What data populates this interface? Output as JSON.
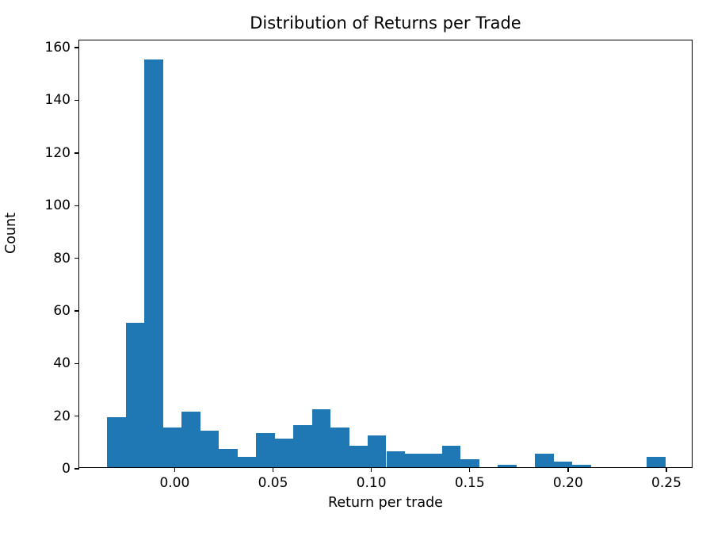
{
  "figure": {
    "background": "#ffffff"
  },
  "chart_data": {
    "type": "histogram",
    "title": "Distribution of Returns per Trade",
    "xlabel": "Return per trade",
    "ylabel": "Count",
    "bar_color": "#1f77b4",
    "grid": false,
    "legend": false,
    "bins": {
      "start": -0.0343,
      "width": 0.00946,
      "count": 30
    },
    "counts": [
      19,
      55,
      155,
      15,
      21,
      14,
      7,
      4,
      13,
      11,
      16,
      22,
      15,
      8,
      12,
      6,
      5,
      5,
      8,
      3,
      0,
      1,
      0,
      5,
      2,
      1,
      0,
      0,
      0,
      4
    ],
    "total_observations": 427,
    "xlim": [
      -0.0485,
      0.2637
    ],
    "ylim": [
      0,
      162.75
    ],
    "xticks": [
      0.0,
      0.05,
      0.1,
      0.15,
      0.2,
      0.25
    ],
    "xtick_labels": [
      "0.00",
      "0.05",
      "0.10",
      "0.15",
      "0.20",
      "0.25"
    ],
    "yticks": [
      0,
      20,
      40,
      60,
      80,
      100,
      120,
      140,
      160
    ],
    "ytick_labels": [
      "0",
      "20",
      "40",
      "60",
      "80",
      "100",
      "120",
      "140",
      "160"
    ]
  }
}
